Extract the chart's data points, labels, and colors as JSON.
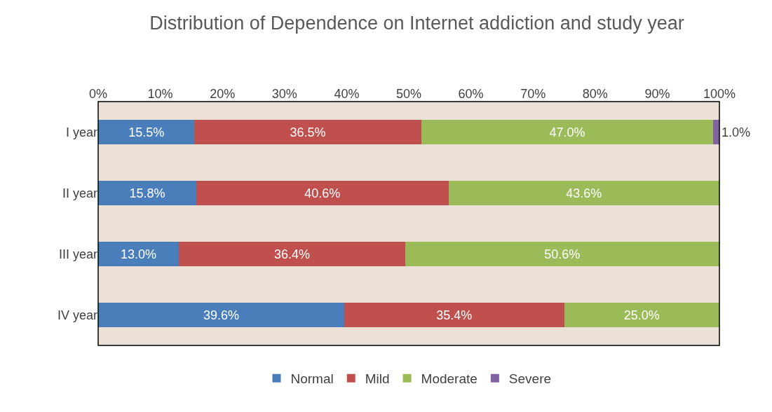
{
  "chart_data": {
    "type": "bar",
    "title": "Distribution of Dependence on Internet addiction and study year",
    "orientation": "horizontal",
    "stacked": true,
    "categories": [
      "I year",
      "II year",
      "III year",
      "IV year"
    ],
    "series": [
      {
        "name": "Normal",
        "color": "#4a7ebb",
        "values": [
          15.5,
          15.8,
          13.0,
          39.6
        ],
        "value_labels": [
          "15.5%",
          "15.8%",
          "13.0%",
          "39.6%"
        ]
      },
      {
        "name": "Mild",
        "color": "#c0504d",
        "values": [
          36.5,
          40.6,
          36.4,
          35.4
        ],
        "value_labels": [
          "36.5%",
          "40.6%",
          "36.4%",
          "35.4%"
        ]
      },
      {
        "name": "Moderate",
        "color": "#9bbb59",
        "values": [
          47.0,
          43.6,
          50.6,
          25.0
        ],
        "value_labels": [
          "47.0%",
          "43.6%",
          "50.6%",
          "25.0%"
        ]
      },
      {
        "name": "Severe",
        "color": "#8064a2",
        "values": [
          1.0,
          null,
          null,
          null
        ],
        "value_labels": [
          "1.0%",
          null,
          null,
          null
        ]
      }
    ],
    "xlim": [
      0,
      100
    ],
    "xticks": [
      {
        "value": 0,
        "label": "0%"
      },
      {
        "value": 10,
        "label": "10%"
      },
      {
        "value": 20,
        "label": "20%"
      },
      {
        "value": 30,
        "label": "30%"
      },
      {
        "value": 40,
        "label": "40%"
      },
      {
        "value": 50,
        "label": "50%"
      },
      {
        "value": 60,
        "label": "60%"
      },
      {
        "value": 70,
        "label": "70%"
      },
      {
        "value": 80,
        "label": "80%"
      },
      {
        "value": 90,
        "label": "90%"
      },
      {
        "value": 100,
        "label": "100%"
      }
    ],
    "grid": false,
    "legend": "bottom"
  }
}
